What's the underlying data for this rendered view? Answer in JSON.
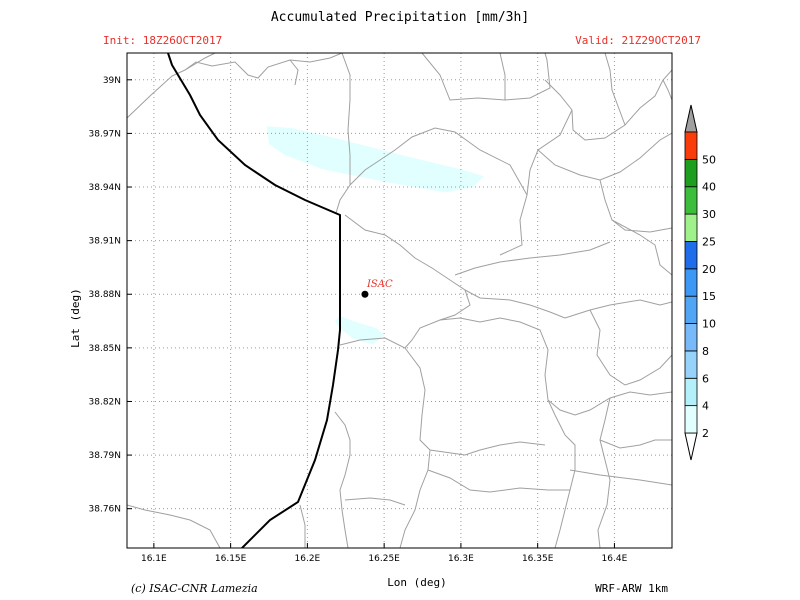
{
  "header": {
    "title": "Accumulated Precipitation [mm/3h]",
    "init": "Init: 18Z26OCT2017",
    "valid": "Valid: 21Z29OCT2017"
  },
  "axes": {
    "xlabel": "Lon (deg)",
    "ylabel": "Lat (deg)",
    "x_ticks": [
      {
        "label": "16.1E",
        "value": 16.1
      },
      {
        "label": "16.15E",
        "value": 16.15
      },
      {
        "label": "16.2E",
        "value": 16.2
      },
      {
        "label": "16.25E",
        "value": 16.25
      },
      {
        "label": "16.3E",
        "value": 16.3
      },
      {
        "label": "16.35E",
        "value": 16.35
      },
      {
        "label": "16.4E",
        "value": 16.4
      }
    ],
    "y_ticks": [
      {
        "label": "39N",
        "value": 39.0
      },
      {
        "label": "38.97N",
        "value": 38.97
      },
      {
        "label": "38.94N",
        "value": 38.94
      },
      {
        "label": "38.91N",
        "value": 38.91
      },
      {
        "label": "38.88N",
        "value": 38.88
      },
      {
        "label": "38.85N",
        "value": 38.85
      },
      {
        "label": "38.82N",
        "value": 38.82
      },
      {
        "label": "38.79N",
        "value": 38.79
      },
      {
        "label": "38.76N",
        "value": 38.76
      }
    ],
    "xlim": [
      16.0825,
      16.4375
    ],
    "ylim": [
      38.738,
      39.015
    ],
    "grid": "dotted"
  },
  "station": {
    "name": "ISAC",
    "lon": 16.2375,
    "lat": 38.88
  },
  "colorbar": {
    "levels": [
      "2",
      "4",
      "6",
      "8",
      "10",
      "15",
      "20",
      "25",
      "30",
      "40",
      "50"
    ],
    "colors": [
      "#e1ffff",
      "#b4f0fa",
      "#96d2fa",
      "#78b9fa",
      "#50a5f5",
      "#3c97f5",
      "#1e6eeb",
      "#a0f08c",
      "#3cbe3c",
      "#1e9e1e",
      "#fa3c0a"
    ],
    "under_color": "#ffffff",
    "over_color": "#a0a0a0"
  },
  "precip_areas": [
    {
      "level_index": 0,
      "points": [
        [
          16.1735,
          38.974
        ],
        [
          16.19,
          38.973
        ],
        [
          16.22,
          38.967
        ],
        [
          16.27,
          38.956
        ],
        [
          16.3,
          38.95
        ],
        [
          16.315,
          38.946
        ],
        [
          16.308,
          38.94
        ],
        [
          16.29,
          38.937
        ],
        [
          16.25,
          38.943
        ],
        [
          16.21,
          38.95
        ],
        [
          16.185,
          38.958
        ],
        [
          16.175,
          38.964
        ]
      ]
    },
    {
      "level_index": 0,
      "points": [
        [
          16.221,
          38.868
        ],
        [
          16.23,
          38.865
        ],
        [
          16.245,
          38.861
        ],
        [
          16.25,
          38.857
        ],
        [
          16.243,
          38.852
        ],
        [
          16.23,
          38.855
        ],
        [
          16.221,
          38.861
        ],
        [
          16.218,
          38.865
        ]
      ]
    }
  ],
  "footer": {
    "left": "(c) ISAC-CNR Lamezia",
    "right": "WRF-ARW 1km"
  }
}
